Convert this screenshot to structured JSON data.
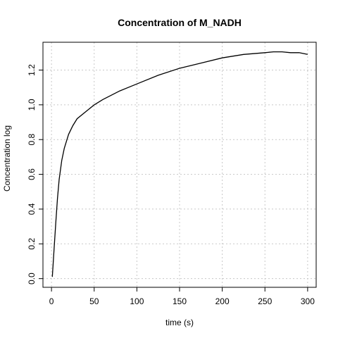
{
  "chart_data": {
    "type": "line",
    "title": "Concentration of M_NADH",
    "xlabel": "time (s)",
    "ylabel": "Concentration log",
    "xlim": [
      -10,
      310
    ],
    "ylim": [
      -0.05,
      1.36
    ],
    "xticks": [
      0,
      50,
      100,
      150,
      200,
      250,
      300
    ],
    "yticks": [
      0.0,
      0.2,
      0.4,
      0.6,
      0.8,
      1.0,
      1.2
    ],
    "xtick_labels": [
      "0",
      "50",
      "100",
      "150",
      "200",
      "250",
      "300"
    ],
    "ytick_labels": [
      "0.0",
      "0.2",
      "0.4",
      "0.6",
      "0.8",
      "1.0",
      "1.2"
    ],
    "grid": true,
    "series": [
      {
        "color": "#000000",
        "x": [
          1,
          3,
          5,
          7,
          9,
          12,
          15,
          20,
          25,
          30,
          40,
          50,
          60,
          80,
          100,
          125,
          150,
          175,
          200,
          225,
          250,
          260,
          270,
          280,
          290,
          300
        ],
        "y": [
          0.01,
          0.17,
          0.32,
          0.46,
          0.57,
          0.68,
          0.75,
          0.83,
          0.88,
          0.92,
          0.96,
          1.0,
          1.03,
          1.08,
          1.12,
          1.17,
          1.21,
          1.24,
          1.27,
          1.29,
          1.3,
          1.305,
          1.305,
          1.3,
          1.3,
          1.29
        ]
      }
    ]
  }
}
